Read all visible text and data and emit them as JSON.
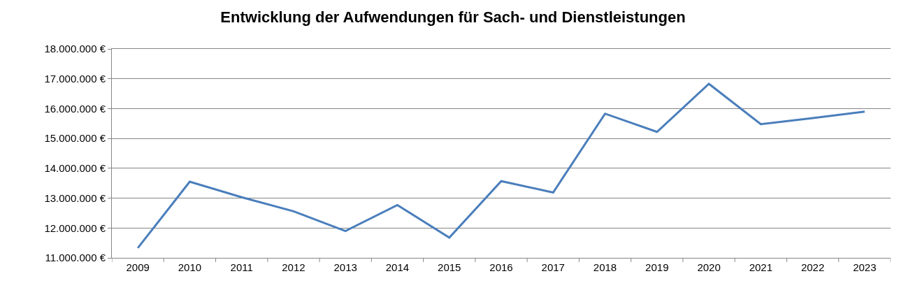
{
  "chart_data": {
    "type": "line",
    "title": "Entwicklung der Aufwendungen für Sach- und Dienstleistungen",
    "categories": [
      "2009",
      "2010",
      "2011",
      "2012",
      "2013",
      "2014",
      "2015",
      "2016",
      "2017",
      "2018",
      "2019",
      "2020",
      "2021",
      "2022",
      "2023"
    ],
    "series": [
      {
        "color": "#4a7ebb",
        "values": [
          11330000,
          13550000,
          13030000,
          12560000,
          11900000,
          12770000,
          11680000,
          13570000,
          13190000,
          15830000,
          15220000,
          16830000,
          15480000,
          15680000,
          15900000
        ]
      }
    ],
    "ylim": [
      11000000,
      18000000
    ],
    "yticks": [
      {
        "value": 11000000,
        "label": "11.000.000 €"
      },
      {
        "value": 12000000,
        "label": "12.000.000 €"
      },
      {
        "value": 13000000,
        "label": "13.000.000 €"
      },
      {
        "value": 14000000,
        "label": "14.000.000 €"
      },
      {
        "value": 15000000,
        "label": "15.000.000 €"
      },
      {
        "value": 16000000,
        "label": "16.000.000 €"
      },
      {
        "value": 17000000,
        "label": "17.000.000 €"
      },
      {
        "value": 18000000,
        "label": "18.000.000 €"
      }
    ],
    "grid": "y",
    "marker": "none",
    "line_style": "solid"
  }
}
